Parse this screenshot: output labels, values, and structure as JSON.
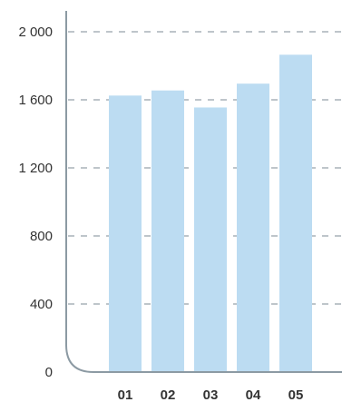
{
  "chart_data": {
    "type": "bar",
    "title": "",
    "xlabel": "",
    "ylabel": "",
    "categories": [
      "01",
      "02",
      "03",
      "04",
      "05"
    ],
    "values": [
      1625,
      1655,
      1555,
      1695,
      1865
    ],
    "ylim": [
      0,
      2000
    ],
    "yticks": [
      0,
      400,
      800,
      1200,
      1600,
      2000
    ],
    "ytick_labels": [
      "0",
      "400",
      "800",
      "1 200",
      "1 600",
      "2 000"
    ],
    "grid": true,
    "grid_style": "dashed",
    "legend": "none",
    "colors": {
      "bar": "#bcdcf2",
      "axis": "#8c9aa3",
      "grid": "#a9b2b8",
      "text": "#333333"
    }
  }
}
